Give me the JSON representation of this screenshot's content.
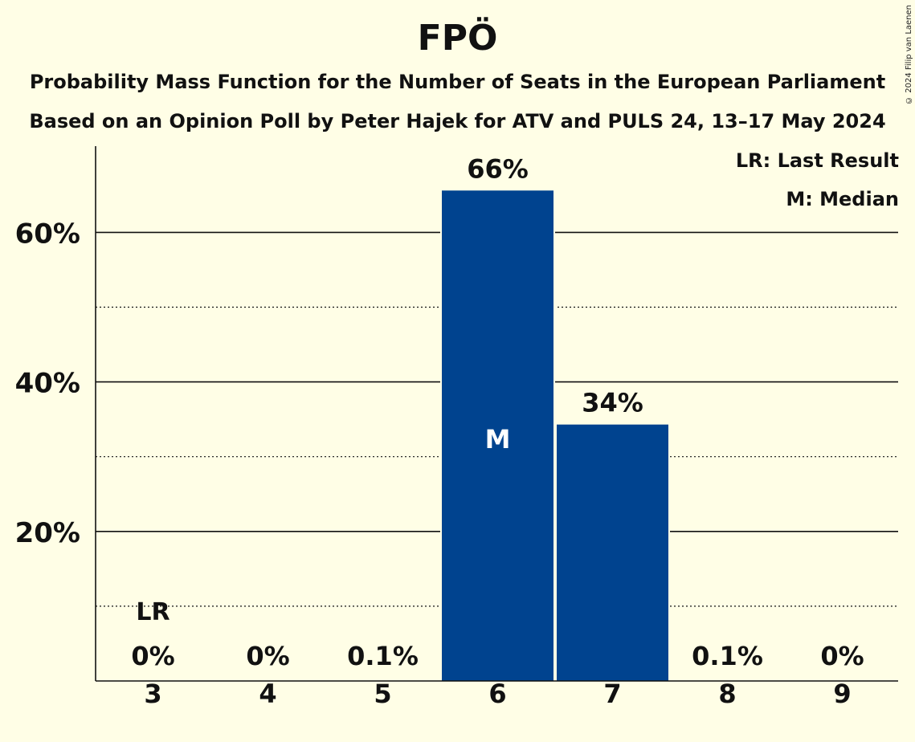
{
  "chart_data": {
    "type": "bar",
    "title": "FPÖ",
    "subtitle_line1": "Probability Mass Function for the Number of Seats in the European Parliament",
    "subtitle_line2": "Based on an Opinion Poll by Peter Hajek for ATV and PULS 24, 13–17 May 2024",
    "categories": [
      "3",
      "4",
      "5",
      "6",
      "7",
      "8",
      "9"
    ],
    "values": [
      0,
      0,
      0.1,
      65.6,
      34.3,
      0.1,
      0
    ],
    "labels": [
      "0%",
      "0%",
      "0.1%",
      "66%",
      "34%",
      "0.1%",
      "0%"
    ],
    "ylim": [
      0,
      71
    ],
    "yticks": [
      20,
      40,
      60
    ],
    "ytick_labels": [
      "20%",
      "40%",
      "60%"
    ],
    "minor_gridlines": [
      10,
      30,
      50
    ],
    "last_result_index": 0,
    "last_result_label": "LR",
    "median_index": 3,
    "median_label": "M",
    "legend": [
      "LR: Last Result",
      "M: Median"
    ],
    "bar_color": "#00438F",
    "copyright": "© 2024 Filip van Laenen"
  }
}
